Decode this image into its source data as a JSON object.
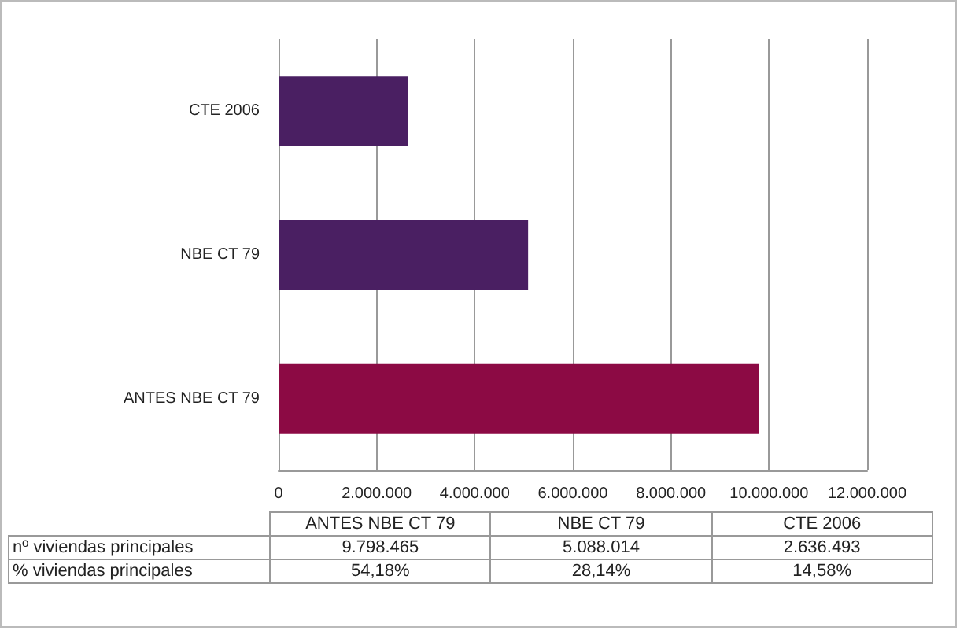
{
  "chart_data": {
    "type": "bar",
    "orientation": "horizontal",
    "categories": [
      "CTE 2006",
      "NBE CT 79",
      "ANTES NBE CT 79"
    ],
    "values": [
      2636493,
      5088014,
      9798465
    ],
    "colors": [
      "#4a1f62",
      "#4a1f62",
      "#8c0a44"
    ],
    "xlim": [
      0,
      12000000
    ],
    "xticks": [
      0,
      {
        "value": 2000000,
        "label": "2.000.000"
      },
      {
        "value": 4000000,
        "label": "4.000.000"
      },
      {
        "value": 6000000,
        "label": "6.000.000"
      },
      {
        "value": 8000000,
        "label": "8.000.000"
      },
      {
        "value": 10000000,
        "label": "10.000.000"
      },
      {
        "value": 12000000,
        "label": "12.000.000"
      }
    ],
    "grid": "x",
    "annotations": [
      "nº viviendas principales",
      "% viviendas principales",
      "2.636.493",
      "5.088.014",
      "9.798.465",
      "14,58%",
      "28,14%",
      "54,18%"
    ]
  }
}
